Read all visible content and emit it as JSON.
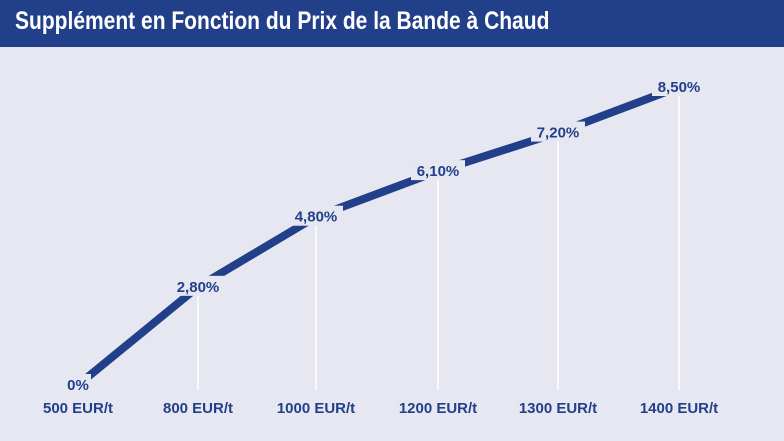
{
  "header": {
    "title": "Supplément en Fonction du Prix de la Bande à Chaud"
  },
  "colors": {
    "background": "#e6e7f1",
    "header_bg": "#22408a",
    "line": "#22408a",
    "text": "#22408a",
    "leader_line": "#ffffff"
  },
  "chart_data": {
    "type": "line",
    "title": "Supplément en Fonction du Prix de la Bande à Chaud",
    "xlabel": "",
    "ylabel": "",
    "categories": [
      "500 EUR/t",
      "800 EUR/t",
      "1000 EUR/t",
      "1200 EUR/t",
      "1300 EUR/t",
      "1400 EUR/t"
    ],
    "values": [
      0,
      2.8,
      4.8,
      6.1,
      7.2,
      8.5
    ],
    "value_labels": [
      "0%",
      "2,80%",
      "4,80%",
      "6,10%",
      "7,20%",
      "8,50%"
    ],
    "ylim": [
      0,
      8.5
    ],
    "grid": false,
    "legend": "none"
  }
}
